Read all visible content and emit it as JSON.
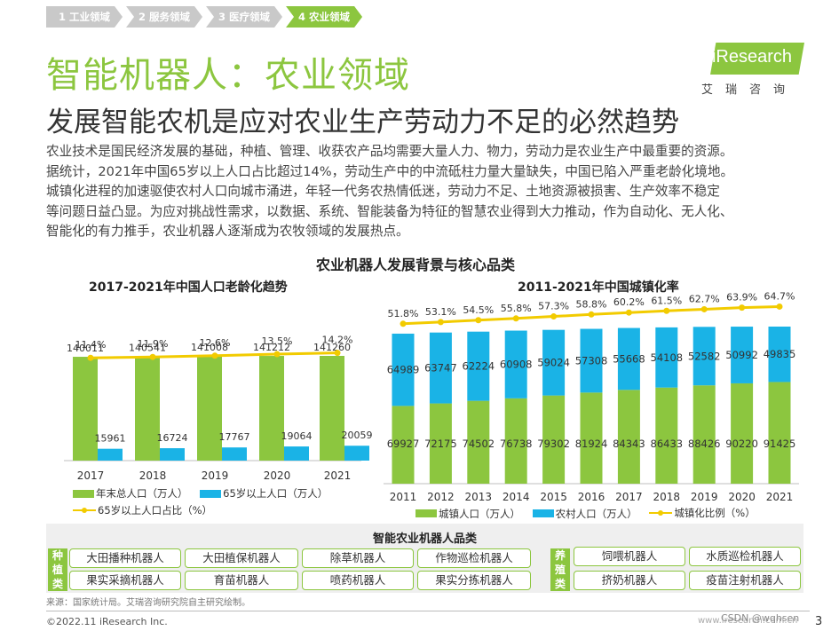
{
  "tabs": [
    "1 工业领域",
    "2 服务领域",
    "3 医疗领域",
    "4 农业领域"
  ],
  "title": "智能机器人：农业领域",
  "subtitle": "发展智能农机是应对农业生产劳动力不足的必然趋势",
  "logo": {
    "brand": "iResearch",
    "cn": "艾瑞咨询"
  },
  "intro": [
    "农业技术是国民经济发展的基础，种植、管理、收获农产品均需要大量人力、物力，劳动力是农业生产中最重要的资源。",
    "据统计，2021年中国65岁以上人口占比超过14%，劳动生产中的中流砥柱力量大量缺失，中国已陷入严重老龄化境地。",
    "城镇化进程的加速驱使农村人口向城市涌进，年轻一代务农热情低迷，劳动力不足、土地资源被损害、生产效率不稳定",
    "等问题日益凸显。为应对挑战性需求，以数据、系统、智能装备为特征的智慧农业得到大力推动，作为自动化、无人化、",
    "智能化的有力推手，农业机器人逐渐成为农牧领域的发展热点。"
  ],
  "section_title": "农业机器人发展背景与核心品类",
  "colors": {
    "green": "#8cc63f",
    "blue": "#1ab3e6",
    "yellow": "#f2cb00"
  },
  "chart_data": [
    {
      "type": "bar",
      "title": "2017-2021年中国人口老龄化趋势",
      "categories": [
        "2017",
        "2018",
        "2019",
        "2020",
        "2021"
      ],
      "series": [
        {
          "name": "年末总人口（万人）",
          "kind": "bar",
          "values": [
            140011,
            140541,
            141008,
            141212,
            141260
          ]
        },
        {
          "name": "65岁以上人口（万人）",
          "kind": "bar",
          "values": [
            15961,
            16724,
            17767,
            19064,
            20059
          ]
        },
        {
          "name": "65岁以上人口占比（%）",
          "kind": "line",
          "values": [
            11.4,
            11.9,
            12.6,
            13.5,
            14.2
          ],
          "labels": [
            "11.4%",
            "11.9%",
            "12.6%",
            "13.5%",
            "14.2%"
          ]
        }
      ]
    },
    {
      "type": "bar",
      "title": "2011-2021年中国城镇化率",
      "stacked": true,
      "categories": [
        "2011",
        "2012",
        "2013",
        "2014",
        "2015",
        "2016",
        "2017",
        "2018",
        "2019",
        "2020",
        "2021"
      ],
      "series": [
        {
          "name": "城镇人口（万人）",
          "kind": "bar",
          "values": [
            69927,
            72175,
            74502,
            76738,
            79302,
            81924,
            84343,
            86433,
            88426,
            90220,
            91425
          ]
        },
        {
          "name": "农村人口（万人）",
          "kind": "bar",
          "values": [
            64989,
            63747,
            62224,
            60908,
            59024,
            57308,
            55668,
            54108,
            52582,
            50992,
            49835
          ]
        },
        {
          "name": "城镇化比例（%）",
          "kind": "line",
          "values": [
            51.8,
            53.1,
            54.5,
            55.8,
            57.3,
            58.8,
            60.2,
            61.5,
            62.7,
            63.9,
            64.7
          ],
          "labels": [
            "51.8%",
            "53.1%",
            "54.5%",
            "55.8%",
            "57.3%",
            "58.8%",
            "60.2%",
            "61.5%",
            "62.7%",
            "63.9%",
            "64.7%"
          ]
        }
      ]
    }
  ],
  "products": {
    "title": "智能农业机器人品类",
    "planting": {
      "label": "种植类",
      "items": [
        "大田播种机器人",
        "大田植保机器人",
        "除草机器人",
        "作物巡检机器人",
        "果实采摘机器人",
        "育苗机器人",
        "喷药机器人",
        "果实分拣机器人"
      ]
    },
    "breeding": {
      "label": "养殖类",
      "items": [
        "饲喂机器人",
        "水质巡检机器人",
        "挤奶机器人",
        "疫苗注射机器人"
      ]
    }
  },
  "source": "来源：国家统计局。艾瑞咨询研究院自主研究绘制。",
  "copyright": "©2022.11 iResearch Inc.",
  "website": "www.iresearch.com.cn",
  "watermark": "CSDN @wqhsen",
  "page_number": "3"
}
